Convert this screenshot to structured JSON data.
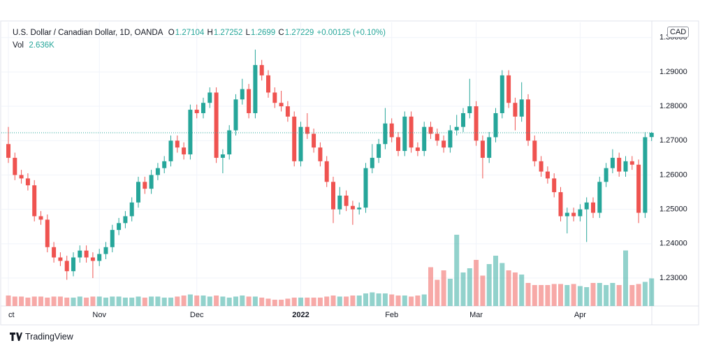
{
  "chart_data": {
    "type": "candlestick",
    "title": "U.S. Dollar / Canadian Dollar, 1D, OANDA",
    "ohlc_labels": [
      "O",
      "H",
      "L",
      "C"
    ],
    "change_label": "+0.00125 (+0.10%)",
    "volume_title": "Vol",
    "volume_value_label": "2.636K",
    "currency": "CAD",
    "brand": "TradingView",
    "up_color": "#26a69a",
    "down_color": "#ef5350",
    "ylim": [
      1.22187,
      1.30443
    ],
    "yticks": [
      {
        "value": 1.23,
        "label": "1.23000"
      },
      {
        "value": 1.24,
        "label": "1.24000"
      },
      {
        "value": 1.25,
        "label": "1.25000"
      },
      {
        "value": 1.26,
        "label": "1.26000"
      },
      {
        "value": 1.27,
        "label": "1.27000"
      },
      {
        "value": 1.28,
        "label": "1.28000"
      },
      {
        "value": 1.29,
        "label": "1.29000"
      },
      {
        "value": 1.3,
        "label": "1.30000"
      }
    ],
    "grid": true,
    "categories": [
      "ct",
      null,
      null,
      null,
      null,
      null,
      null,
      null,
      null,
      null,
      null,
      null,
      null,
      null,
      "Nov",
      null,
      null,
      null,
      null,
      null,
      null,
      null,
      null,
      null,
      null,
      null,
      null,
      null,
      null,
      "Dec",
      null,
      null,
      null,
      null,
      null,
      null,
      null,
      null,
      null,
      null,
      null,
      null,
      null,
      null,
      null,
      "2022",
      null,
      null,
      null,
      null,
      null,
      null,
      null,
      null,
      null,
      null,
      null,
      null,
      null,
      "Feb",
      null,
      null,
      null,
      null,
      null,
      null,
      null,
      null,
      null,
      null,
      null,
      null,
      "Mar",
      null,
      null,
      null,
      null,
      null,
      null,
      null,
      null,
      null,
      null,
      null,
      null,
      null,
      null,
      null,
      "Apr",
      null,
      null,
      null,
      null,
      null,
      null,
      null,
      null,
      null,
      null,
      null
    ],
    "candles": [
      [
        1.269,
        1.274,
        1.2635,
        1.265
      ],
      [
        1.265,
        1.2665,
        1.2585,
        1.26
      ],
      [
        1.26,
        1.2615,
        1.2575,
        1.259
      ],
      [
        1.259,
        1.2605,
        1.2555,
        1.257
      ],
      [
        1.257,
        1.2585,
        1.2465,
        1.248
      ],
      [
        1.248,
        1.2495,
        1.2455,
        1.247
      ],
      [
        1.247,
        1.2485,
        1.2375,
        1.239
      ],
      [
        1.239,
        1.2405,
        1.2345,
        1.236
      ],
      [
        1.236,
        1.2375,
        1.2335,
        1.235
      ],
      [
        1.235,
        1.2365,
        1.2295,
        1.232
      ],
      [
        1.232,
        1.2375,
        1.2305,
        1.236
      ],
      [
        1.236,
        1.2395,
        1.2345,
        1.238
      ],
      [
        1.238,
        1.2395,
        1.2345,
        1.236
      ],
      [
        1.236,
        1.2375,
        1.23,
        1.235
      ],
      [
        1.235,
        1.2385,
        1.2335,
        1.237
      ],
      [
        1.237,
        1.2405,
        1.2355,
        1.239
      ],
      [
        1.239,
        1.2455,
        1.2375,
        1.244
      ],
      [
        1.244,
        1.2475,
        1.2425,
        1.246
      ],
      [
        1.246,
        1.2495,
        1.2445,
        1.248
      ],
      [
        1.248,
        1.2535,
        1.2465,
        1.252
      ],
      [
        1.252,
        1.2595,
        1.2505,
        1.258
      ],
      [
        1.258,
        1.2595,
        1.2545,
        1.256
      ],
      [
        1.256,
        1.2615,
        1.2545,
        1.26
      ],
      [
        1.26,
        1.2635,
        1.2585,
        1.262
      ],
      [
        1.262,
        1.2655,
        1.2605,
        1.264
      ],
      [
        1.264,
        1.2715,
        1.2625,
        1.27
      ],
      [
        1.27,
        1.2715,
        1.2665,
        1.268
      ],
      [
        1.268,
        1.2695,
        1.2645,
        1.266
      ],
      [
        1.266,
        1.2805,
        1.2645,
        1.279
      ],
      [
        1.279,
        1.2805,
        1.2765,
        1.278
      ],
      [
        1.278,
        1.2825,
        1.2765,
        1.281
      ],
      [
        1.281,
        1.2855,
        1.2795,
        1.284
      ],
      [
        1.284,
        1.2855,
        1.2635,
        1.265
      ],
      [
        1.265,
        1.2675,
        1.2605,
        1.266
      ],
      [
        1.266,
        1.2745,
        1.2645,
        1.273
      ],
      [
        1.273,
        1.2835,
        1.2715,
        1.282
      ],
      [
        1.282,
        1.288,
        1.2805,
        1.285
      ],
      [
        1.285,
        1.2865,
        1.2765,
        1.278
      ],
      [
        1.278,
        1.2965,
        1.2765,
        1.292
      ],
      [
        1.292,
        1.2935,
        1.2875,
        1.289
      ],
      [
        1.289,
        1.2905,
        1.2825,
        1.284
      ],
      [
        1.284,
        1.2855,
        1.2795,
        1.281
      ],
      [
        1.281,
        1.2845,
        1.2785,
        1.28
      ],
      [
        1.28,
        1.2815,
        1.2755,
        1.277
      ],
      [
        1.277,
        1.2785,
        1.2625,
        1.264
      ],
      [
        1.264,
        1.2755,
        1.2625,
        1.274
      ],
      [
        1.274,
        1.278,
        1.2705,
        1.272
      ],
      [
        1.272,
        1.2735,
        1.2665,
        1.268
      ],
      [
        1.268,
        1.2695,
        1.2625,
        1.264
      ],
      [
        1.264,
        1.2655,
        1.2565,
        1.258
      ],
      [
        1.258,
        1.2595,
        1.246,
        1.25
      ],
      [
        1.25,
        1.2565,
        1.2485,
        1.254
      ],
      [
        1.254,
        1.2555,
        1.2495,
        1.251
      ],
      [
        1.251,
        1.2525,
        1.2455,
        1.25
      ],
      [
        1.25,
        1.252,
        1.2485,
        1.2505
      ],
      [
        1.2505,
        1.2635,
        1.249,
        1.262
      ],
      [
        1.262,
        1.269,
        1.2605,
        1.265
      ],
      [
        1.265,
        1.2705,
        1.2635,
        1.269
      ],
      [
        1.269,
        1.2795,
        1.2675,
        1.275
      ],
      [
        1.275,
        1.2765,
        1.2695,
        1.271
      ],
      [
        1.271,
        1.2725,
        1.2655,
        1.267
      ],
      [
        1.267,
        1.2785,
        1.2655,
        1.277
      ],
      [
        1.277,
        1.2785,
        1.2665,
        1.268
      ],
      [
        1.268,
        1.2695,
        1.2655,
        1.267
      ],
      [
        1.267,
        1.2755,
        1.2655,
        1.274
      ],
      [
        1.274,
        1.2755,
        1.2705,
        1.272
      ],
      [
        1.272,
        1.2735,
        1.2685,
        1.27
      ],
      [
        1.27,
        1.2715,
        1.2665,
        1.268
      ],
      [
        1.268,
        1.2745,
        1.2665,
        1.273
      ],
      [
        1.273,
        1.2775,
        1.2715,
        1.274
      ],
      [
        1.274,
        1.2795,
        1.2725,
        1.278
      ],
      [
        1.278,
        1.288,
        1.2765,
        1.28
      ],
      [
        1.28,
        1.2815,
        1.2685,
        1.27
      ],
      [
        1.27,
        1.2715,
        1.259,
        1.265
      ],
      [
        1.265,
        1.2725,
        1.2635,
        1.271
      ],
      [
        1.271,
        1.2795,
        1.2695,
        1.278
      ],
      [
        1.278,
        1.2905,
        1.2765,
        1.289
      ],
      [
        1.289,
        1.2905,
        1.2795,
        1.281
      ],
      [
        1.281,
        1.2825,
        1.273,
        1.277
      ],
      [
        1.277,
        1.287,
        1.2755,
        1.282
      ],
      [
        1.282,
        1.2835,
        1.2685,
        1.27
      ],
      [
        1.27,
        1.2715,
        1.2625,
        1.264
      ],
      [
        1.264,
        1.2655,
        1.2595,
        1.261
      ],
      [
        1.261,
        1.2625,
        1.2575,
        1.259
      ],
      [
        1.259,
        1.2605,
        1.2535,
        1.255
      ],
      [
        1.255,
        1.2565,
        1.2465,
        1.248
      ],
      [
        1.248,
        1.2505,
        1.243,
        1.249
      ],
      [
        1.249,
        1.2505,
        1.2465,
        1.248
      ],
      [
        1.248,
        1.2515,
        1.2465,
        1.25
      ],
      [
        1.25,
        1.2535,
        1.2405,
        1.252
      ],
      [
        1.252,
        1.2535,
        1.2475,
        1.249
      ],
      [
        1.249,
        1.2595,
        1.2475,
        1.258
      ],
      [
        1.258,
        1.2635,
        1.2565,
        1.262
      ],
      [
        1.262,
        1.2675,
        1.2605,
        1.265
      ],
      [
        1.265,
        1.2665,
        1.2595,
        1.261
      ],
      [
        1.261,
        1.2655,
        1.2595,
        1.264
      ],
      [
        1.264,
        1.2655,
        1.2615,
        1.263
      ],
      [
        1.263,
        1.2645,
        1.246,
        1.249
      ],
      [
        1.249,
        1.2725,
        1.2475,
        1.271
      ],
      [
        1.27104,
        1.27252,
        1.2699,
        1.27229
      ]
    ],
    "volumes": [
      1.0,
      0.9,
      0.9,
      0.8,
      0.9,
      0.9,
      0.8,
      0.9,
      0.9,
      0.8,
      0.8,
      0.9,
      0.8,
      0.9,
      0.9,
      0.8,
      0.9,
      0.9,
      0.8,
      0.8,
      0.9,
      0.8,
      0.9,
      0.9,
      0.8,
      0.8,
      0.9,
      1.0,
      1.1,
      1.0,
      1.0,
      0.9,
      1.0,
      0.9,
      0.8,
      0.9,
      1.0,
      0.9,
      0.9,
      0.8,
      0.7,
      0.6,
      0.6,
      0.7,
      0.8,
      0.8,
      0.8,
      0.8,
      0.8,
      0.9,
      1.0,
      0.9,
      0.9,
      1.0,
      1.0,
      1.2,
      1.3,
      1.2,
      1.2,
      1.1,
      1.0,
      1.0,
      0.9,
      1.0,
      1.1,
      3.7,
      2.5,
      3.4,
      2.6,
      6.8,
      3.2,
      3.6,
      4.4,
      2.9,
      4.0,
      4.8,
      4.1,
      3.4,
      3.2,
      3.0,
      2.2,
      2.0,
      2.0,
      2.0,
      2.1,
      2.1,
      2.0,
      2.1,
      1.9,
      1.8,
      2.2,
      2.2,
      2.0,
      2.2,
      2.0,
      5.3,
      2.0,
      2.1,
      2.3,
      2.636
    ]
  }
}
